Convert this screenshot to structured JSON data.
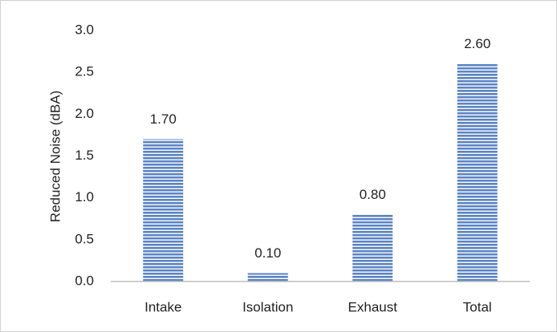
{
  "chart_data": {
    "type": "bar",
    "y_label": "Reduced Noise (dBA)",
    "categories": [
      "Intake",
      "Isolation",
      "Exhaust",
      "Total"
    ],
    "values": [
      1.7,
      0.1,
      0.8,
      2.6
    ],
    "value_labels": [
      "1.70",
      "0.10",
      "0.80",
      "2.60"
    ],
    "color": "#5b84c4",
    "ylim": [
      0,
      3
    ],
    "yticks": [
      {
        "value": 0,
        "label": "0.0"
      },
      0.5,
      {
        "value": 1,
        "label": "1.0"
      },
      1.5,
      {
        "value": 2,
        "label": "2.0"
      },
      2.5,
      {
        "value": 3,
        "label": "3.0"
      }
    ],
    "grid": false
  }
}
